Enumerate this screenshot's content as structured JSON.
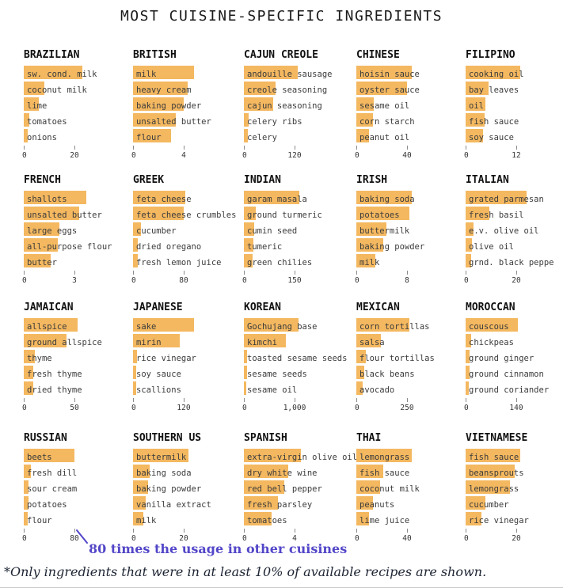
{
  "title": "MOST CUISINE-SPECIFIC INGREDIENTS",
  "chart_data": {
    "type": "bar",
    "orientation": "horizontal",
    "layout": "small-multiples 5x4",
    "bar_color": "#F4B860",
    "axis_zero_label": "0",
    "annotation": {
      "text": "80 times the usage in other cuisines",
      "color": "#5246C8"
    },
    "footnote": "*Only ingredients that were in at least 10% of available recipes are shown.",
    "panels": [
      {
        "cuisine": "BRAZILIAN",
        "tick_label": "20",
        "tick_value": 20,
        "ingredients": [
          {
            "name": "sw. cond. milk",
            "value": 23
          },
          {
            "name": "coconut milk",
            "value": 8
          },
          {
            "name": "lime",
            "value": 6
          },
          {
            "name": "tomatoes",
            "value": 2.2
          },
          {
            "name": "onions",
            "value": 1.6
          }
        ]
      },
      {
        "cuisine": "BRITISH",
        "tick_label": "4",
        "tick_value": 4,
        "ingredients": [
          {
            "name": "milk",
            "value": 4.8
          },
          {
            "name": "heavy cream",
            "value": 4.3
          },
          {
            "name": "baking powder",
            "value": 4.0
          },
          {
            "name": "unsalted butter",
            "value": 3.4
          },
          {
            "name": "flour",
            "value": 3.0
          }
        ]
      },
      {
        "cuisine": "CAJUN CREOLE",
        "tick_label": "120",
        "tick_value": 120,
        "ingredients": [
          {
            "name": "andouille sausage",
            "value": 128
          },
          {
            "name": "creole seasoning",
            "value": 74
          },
          {
            "name": "cajun seasoning",
            "value": 70
          },
          {
            "name": "celery ribs",
            "value": 12
          },
          {
            "name": "celery",
            "value": 10
          }
        ]
      },
      {
        "cuisine": "CHINESE",
        "tick_label": "40",
        "tick_value": 40,
        "ingredients": [
          {
            "name": "hoisin sauce",
            "value": 44
          },
          {
            "name": "oyster sauce",
            "value": 40
          },
          {
            "name": "sesame oil",
            "value": 14
          },
          {
            "name": "corn starch",
            "value": 13
          },
          {
            "name": "peanut oil",
            "value": 10
          }
        ]
      },
      {
        "cuisine": "FILIPINO",
        "tick_label": "12",
        "tick_value": 12,
        "ingredients": [
          {
            "name": "cooking oil",
            "value": 13
          },
          {
            "name": "bay leaves",
            "value": 5.5
          },
          {
            "name": "oil",
            "value": 4.6
          },
          {
            "name": "fish sauce",
            "value": 4.4
          },
          {
            "name": "soy sauce",
            "value": 4.1
          }
        ]
      },
      {
        "cuisine": "FRENCH",
        "tick_label": "3",
        "tick_value": 3,
        "ingredients": [
          {
            "name": "shallots",
            "value": 3.7
          },
          {
            "name": "unsalted butter",
            "value": 3.3
          },
          {
            "name": "large eggs",
            "value": 2.1
          },
          {
            "name": "all-purpose flour",
            "value": 2.0
          },
          {
            "name": "butter",
            "value": 1.6
          }
        ]
      },
      {
        "cuisine": "GREEK",
        "tick_label": "80",
        "tick_value": 80,
        "ingredients": [
          {
            "name": "feta cheese",
            "value": 82
          },
          {
            "name": "feta cheese crumbles",
            "value": 80
          },
          {
            "name": "cucumber",
            "value": 12
          },
          {
            "name": "dried oregano",
            "value": 8
          },
          {
            "name": "fresh lemon juice",
            "value": 7
          }
        ]
      },
      {
        "cuisine": "INDIAN",
        "tick_label": "150",
        "tick_value": 150,
        "ingredients": [
          {
            "name": "garam masala",
            "value": 165
          },
          {
            "name": "ground turmeric",
            "value": 35
          },
          {
            "name": "cumin seed",
            "value": 30
          },
          {
            "name": "tumeric",
            "value": 28
          },
          {
            "name": "green chilies",
            "value": 25
          }
        ]
      },
      {
        "cuisine": "IRISH",
        "tick_label": "8",
        "tick_value": 8,
        "ingredients": [
          {
            "name": "baking soda",
            "value": 8.8
          },
          {
            "name": "potatoes",
            "value": 8.4
          },
          {
            "name": "buttermilk",
            "value": 4.8
          },
          {
            "name": "baking powder",
            "value": 4.2
          },
          {
            "name": "milk",
            "value": 3.0
          }
        ]
      },
      {
        "cuisine": "ITALIAN",
        "tick_label": "20",
        "tick_value": 20,
        "ingredients": [
          {
            "name": "grated parmesan",
            "value": 24
          },
          {
            "name": "fresh basil",
            "value": 9.5
          },
          {
            "name": "e.v. olive oil",
            "value": 3.2
          },
          {
            "name": "olive oil",
            "value": 2.6
          },
          {
            "name": "grnd. black peppe",
            "value": 2.2
          }
        ]
      },
      {
        "cuisine": "JAMAICAN",
        "tick_label": "50",
        "tick_value": 50,
        "ingredients": [
          {
            "name": "allspice",
            "value": 53
          },
          {
            "name": "ground allspice",
            "value": 42
          },
          {
            "name": "thyme",
            "value": 11
          },
          {
            "name": "fresh thyme",
            "value": 9.5
          },
          {
            "name": "dried thyme",
            "value": 9
          }
        ]
      },
      {
        "cuisine": "JAPANESE",
        "tick_label": "120",
        "tick_value": 120,
        "ingredients": [
          {
            "name": "sake",
            "value": 145
          },
          {
            "name": "mirin",
            "value": 110
          },
          {
            "name": "rice vinegar",
            "value": 10
          },
          {
            "name": "soy sauce",
            "value": 8
          },
          {
            "name": "scallions",
            "value": 8
          }
        ]
      },
      {
        "cuisine": "KOREAN",
        "tick_label": "1,000",
        "tick_value": 1000,
        "ingredients": [
          {
            "name": "Gochujang base",
            "value": 1080
          },
          {
            "name": "kimchi",
            "value": 820
          },
          {
            "name": "toasted sesame seeds",
            "value": 60
          },
          {
            "name": "sesame seeds",
            "value": 55
          },
          {
            "name": "sesame oil",
            "value": 45
          }
        ]
      },
      {
        "cuisine": "MEXICAN",
        "tick_label": "250",
        "tick_value": 250,
        "ingredients": [
          {
            "name": "corn tortillas",
            "value": 260
          },
          {
            "name": "salsa",
            "value": 120
          },
          {
            "name": "flour tortillas",
            "value": 48
          },
          {
            "name": "black beans",
            "value": 37
          },
          {
            "name": "avocado",
            "value": 30
          }
        ]
      },
      {
        "cuisine": "MOROCCAN",
        "tick_label": "140",
        "tick_value": 140,
        "ingredients": [
          {
            "name": "couscous",
            "value": 145
          },
          {
            "name": "chickpeas",
            "value": 16
          },
          {
            "name": "ground ginger",
            "value": 10
          },
          {
            "name": "ground cinnamon",
            "value": 10
          },
          {
            "name": "ground coriander",
            "value": 8
          }
        ]
      },
      {
        "cuisine": "RUSSIAN",
        "tick_label": "80",
        "tick_value": 80,
        "ingredients": [
          {
            "name": "beets",
            "value": 80
          },
          {
            "name": "fresh dill",
            "value": 11
          },
          {
            "name": "sour cream",
            "value": 8
          },
          {
            "name": "potatoes",
            "value": 7
          },
          {
            "name": "flour",
            "value": 6
          }
        ]
      },
      {
        "cuisine": "SOUTHERN US",
        "tick_label": "20",
        "tick_value": 20,
        "ingredients": [
          {
            "name": "buttermilk",
            "value": 22
          },
          {
            "name": "baking soda",
            "value": 6.7
          },
          {
            "name": "baking powder",
            "value": 6.0
          },
          {
            "name": "vanilla extract",
            "value": 5.0
          },
          {
            "name": "milk",
            "value": 4.0
          }
        ]
      },
      {
        "cuisine": "SPANISH",
        "tick_label": "4",
        "tick_value": 4,
        "ingredients": [
          {
            "name": "extra-virgin olive oil",
            "value": 4.5
          },
          {
            "name": "dry white wine",
            "value": 3.5
          },
          {
            "name": "red bell pepper",
            "value": 3.2
          },
          {
            "name": "fresh parsley",
            "value": 2.7
          },
          {
            "name": "tomatoes",
            "value": 2.2
          }
        ]
      },
      {
        "cuisine": "THAI",
        "tick_label": "40",
        "tick_value": 40,
        "ingredients": [
          {
            "name": "lemongrass",
            "value": 44
          },
          {
            "name": "fish sauce",
            "value": 21
          },
          {
            "name": "coconut milk",
            "value": 19
          },
          {
            "name": "peanuts",
            "value": 13
          },
          {
            "name": "lime juice",
            "value": 10
          }
        ]
      },
      {
        "cuisine": "VIETNAMESE",
        "tick_label": "20",
        "tick_value": 20,
        "ingredients": [
          {
            "name": "fish sauce",
            "value": 21.5
          },
          {
            "name": "beansprouts",
            "value": 19.5
          },
          {
            "name": "lemongrass",
            "value": 17.5
          },
          {
            "name": "cucumber",
            "value": 7.7
          },
          {
            "name": "rice vinegar",
            "value": 6.2
          }
        ]
      }
    ]
  }
}
